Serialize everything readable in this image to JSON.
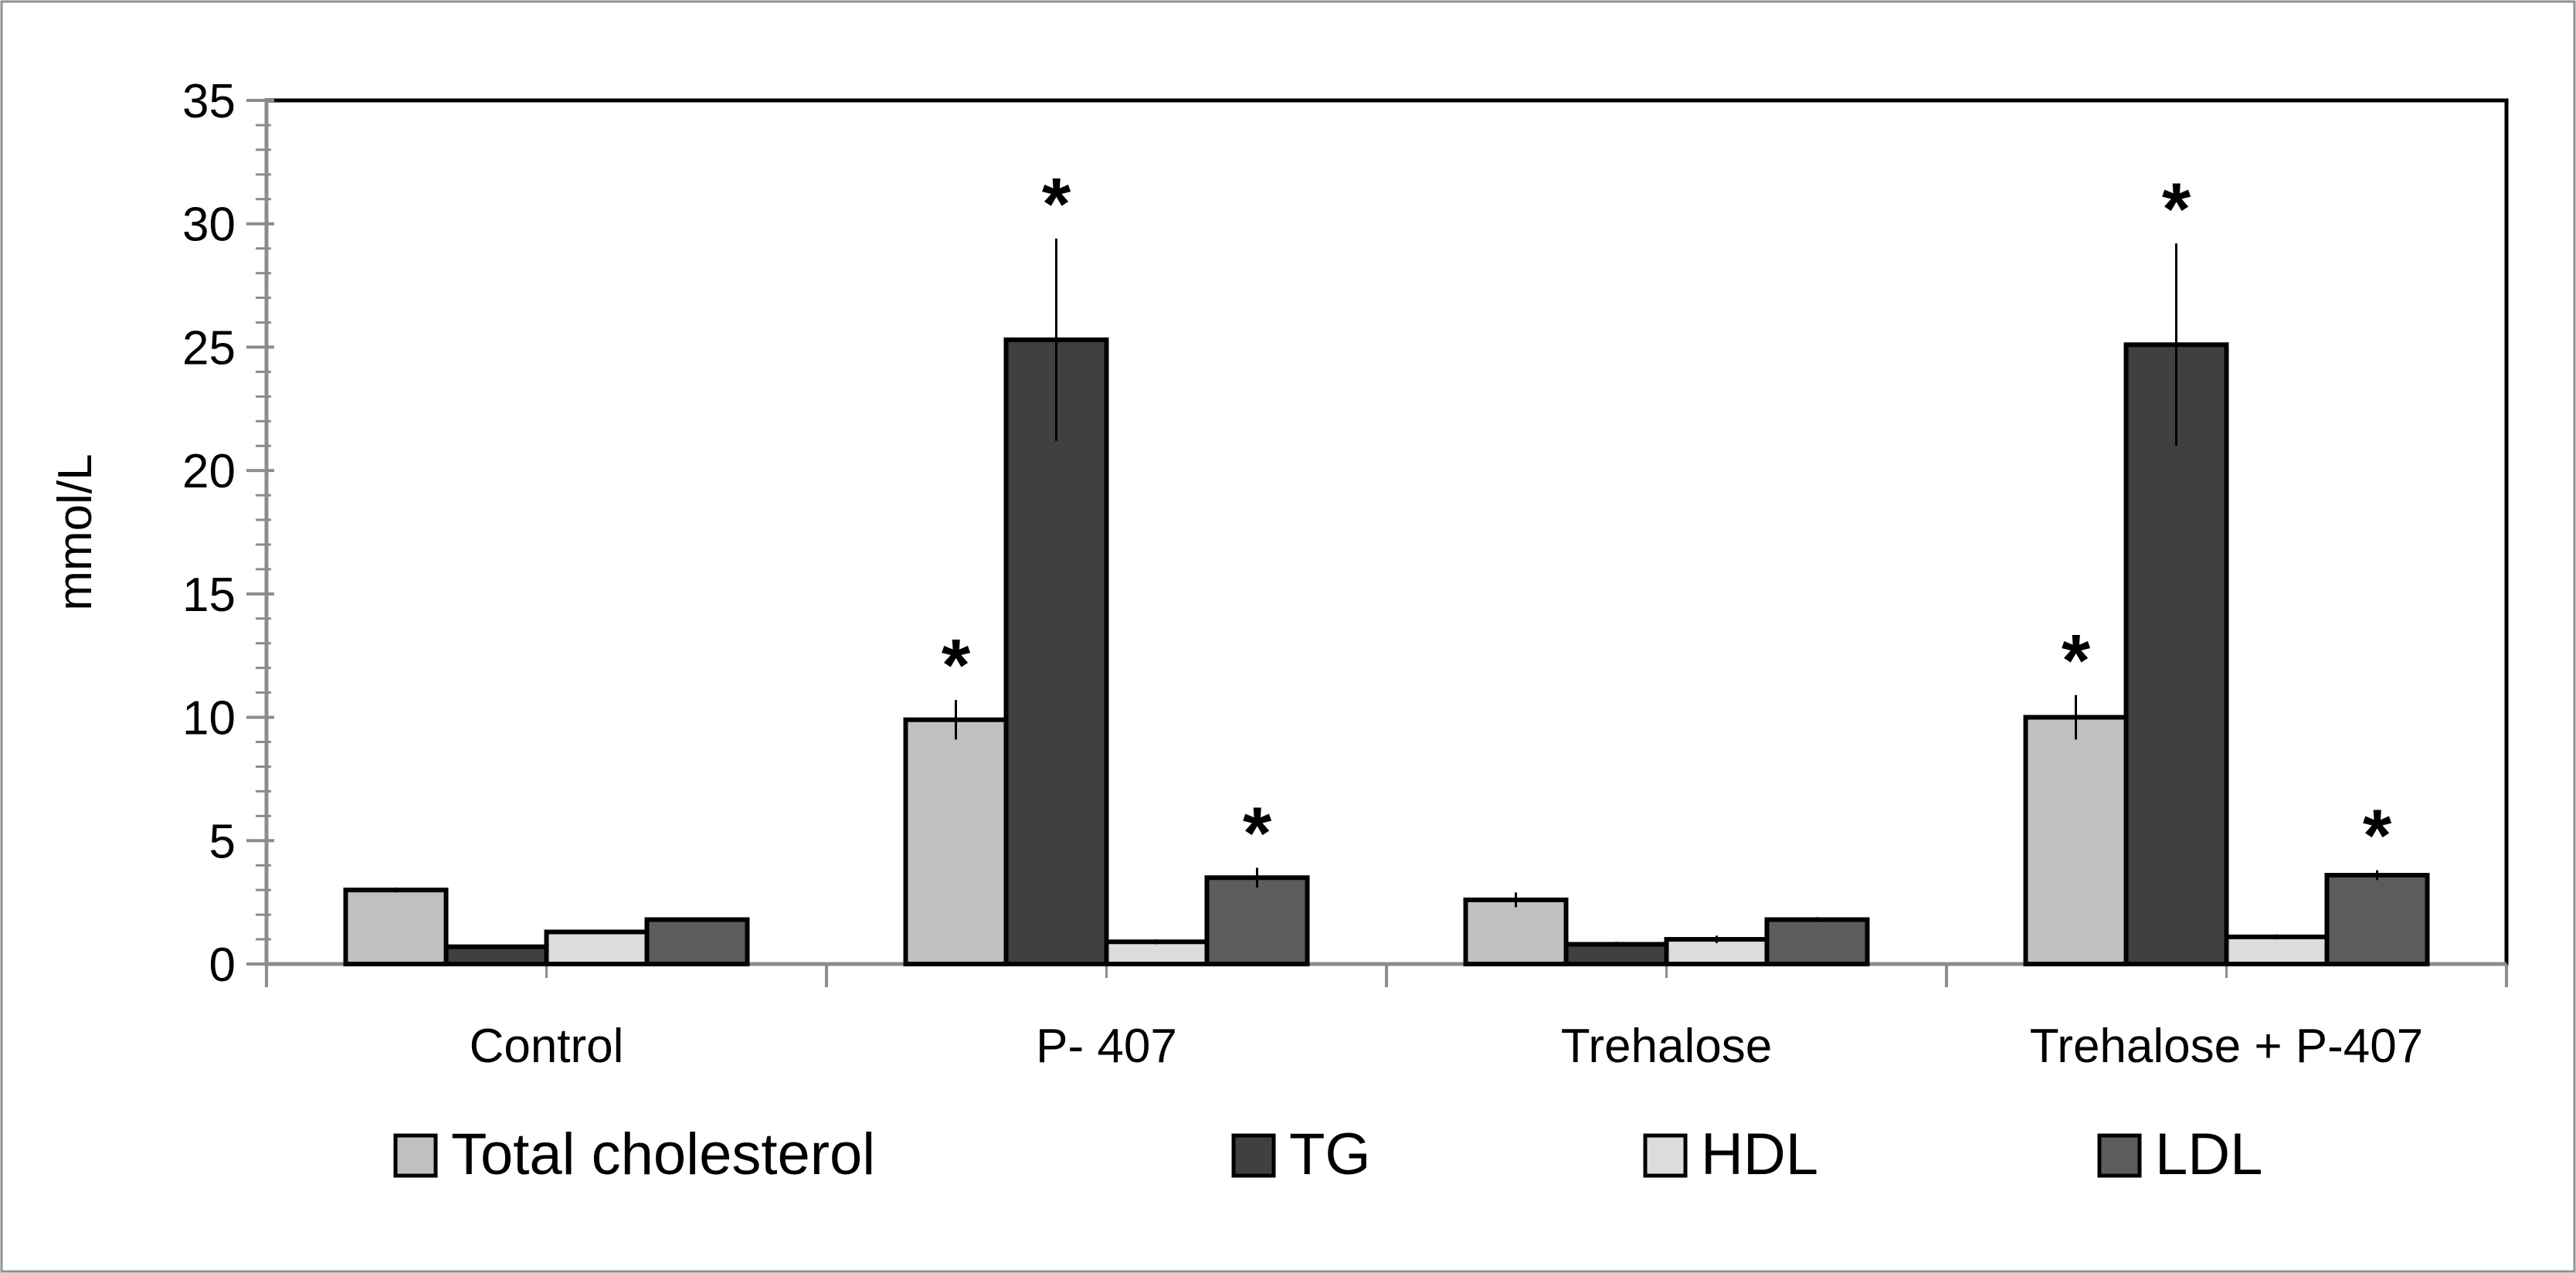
{
  "chart_data": {
    "type": "bar",
    "title": "",
    "xlabel": "",
    "ylabel": "mmol/L",
    "ylim": [
      0,
      35
    ],
    "yticks": [
      "0",
      "5",
      "10",
      "15",
      "20",
      "25",
      "30",
      "35"
    ],
    "grid": false,
    "legend_position": "bottom",
    "categories": [
      "Control",
      "P- 407",
      "Trehalose",
      "Trehalose + P-407"
    ],
    "series": [
      {
        "name": "Total cholesterol",
        "color": "#c0c0c0",
        "values": [
          3.0,
          9.9,
          2.6,
          10.0
        ],
        "errors": [
          0.1,
          0.8,
          0.3,
          0.9
        ],
        "significance": [
          "",
          "*",
          "",
          "*"
        ]
      },
      {
        "name": "TG",
        "color": "#404040",
        "values": [
          0.7,
          25.3,
          0.8,
          25.1
        ],
        "errors": [
          0.05,
          4.1,
          0.1,
          4.1
        ],
        "significance": [
          "",
          "*",
          "",
          "*"
        ]
      },
      {
        "name": "HDL",
        "color": "#dcdcdc",
        "values": [
          1.3,
          0.9,
          1.0,
          1.1
        ],
        "errors": [
          0.05,
          0.1,
          0.15,
          0.1
        ],
        "significance": [
          "",
          "",
          "",
          ""
        ]
      },
      {
        "name": "LDL",
        "color": "#5c5c5c",
        "values": [
          1.8,
          3.5,
          1.8,
          3.6
        ],
        "errors": [
          0.05,
          0.4,
          0.1,
          0.2
        ],
        "significance": [
          "",
          "*",
          "",
          "*"
        ]
      }
    ]
  }
}
